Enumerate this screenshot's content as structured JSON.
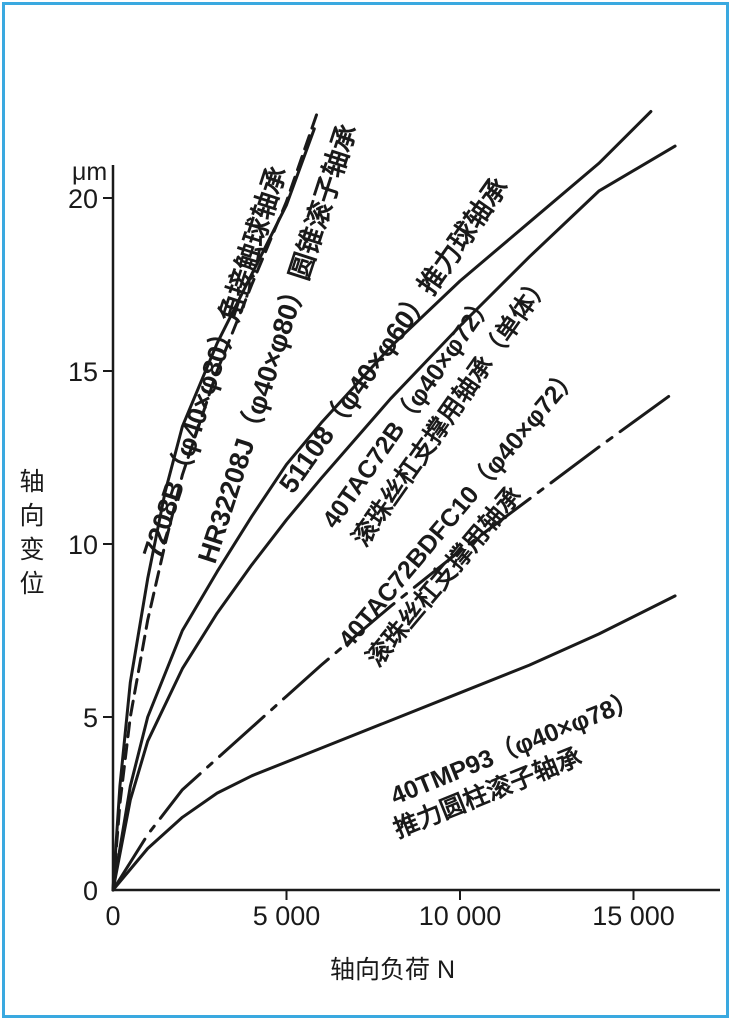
{
  "chart_data": {
    "type": "line",
    "xlabel": "轴向负荷 N",
    "ylabel": "轴向变位",
    "yunit": "μm",
    "xlim": [
      0,
      17500
    ],
    "ylim": [
      0,
      21
    ],
    "x_ticks": [
      {
        "value": 0,
        "label": "0"
      },
      {
        "value": 5000,
        "label": "5 000"
      },
      {
        "value": 10000,
        "label": "10 000"
      },
      {
        "value": 15000,
        "label": "15 000"
      }
    ],
    "y_ticks": [
      {
        "value": 0,
        "label": "0"
      },
      {
        "value": 5,
        "label": "5"
      },
      {
        "value": 10,
        "label": "10"
      },
      {
        "value": 15,
        "label": "15"
      },
      {
        "value": 20,
        "label": "20"
      }
    ],
    "grid": false,
    "series": [
      {
        "name": "7208B（φ40×φ80）角接触球轴承",
        "style": "solid",
        "points": [
          [
            0,
            0
          ],
          [
            200,
            3
          ],
          [
            500,
            6
          ],
          [
            1000,
            9
          ],
          [
            1500,
            11.5
          ],
          [
            2000,
            13.4
          ],
          [
            3000,
            15.8
          ],
          [
            4000,
            17.8
          ],
          [
            5000,
            19.8
          ],
          [
            5800,
            22
          ]
        ]
      },
      {
        "name": "HR32208J（φ40×φ80）圆锥滚子轴承",
        "style": "dashed",
        "points": [
          [
            0,
            0
          ],
          [
            200,
            2.5
          ],
          [
            500,
            5
          ],
          [
            1000,
            7.8
          ],
          [
            1500,
            10
          ],
          [
            2000,
            12
          ],
          [
            3000,
            15
          ],
          [
            4000,
            17.5
          ],
          [
            5000,
            19.9
          ],
          [
            5900,
            22.5
          ]
        ]
      },
      {
        "name": "51108（φ40×φ60）推力球轴承",
        "style": "solid",
        "points": [
          [
            0,
            0
          ],
          [
            500,
            3
          ],
          [
            1000,
            5
          ],
          [
            2000,
            7.5
          ],
          [
            3000,
            9.2
          ],
          [
            4000,
            10.8
          ],
          [
            5000,
            12.3
          ],
          [
            6000,
            13.5
          ],
          [
            8000,
            15.7
          ],
          [
            10000,
            17.6
          ],
          [
            12000,
            19.3
          ],
          [
            14000,
            21
          ],
          [
            15500,
            22.5
          ]
        ]
      },
      {
        "name": "40TAC72B（φ40×φ72）滚珠丝杠支撑用轴承（单体）",
        "style": "solid",
        "points": [
          [
            0,
            0
          ],
          [
            500,
            2.6
          ],
          [
            1000,
            4.3
          ],
          [
            2000,
            6.4
          ],
          [
            3000,
            8
          ],
          [
            4000,
            9.4
          ],
          [
            5000,
            10.7
          ],
          [
            6000,
            11.9
          ],
          [
            8000,
            14.2
          ],
          [
            10000,
            16.3
          ],
          [
            12000,
            18.3
          ],
          [
            14000,
            20.2
          ],
          [
            16200,
            21.5
          ]
        ]
      },
      {
        "name": "40TAC72BDFC10（φ40×φ72）滚珠丝杠支撑用轴承",
        "style": "dashdot",
        "points": [
          [
            0,
            0
          ],
          [
            1000,
            1.6
          ],
          [
            2000,
            2.9
          ],
          [
            3000,
            3.8
          ],
          [
            4000,
            4.7
          ],
          [
            5000,
            5.6
          ],
          [
            6000,
            6.5
          ],
          [
            8000,
            8.2
          ],
          [
            10000,
            9.8
          ],
          [
            12000,
            11.3
          ],
          [
            14000,
            12.8
          ],
          [
            16200,
            14.4
          ]
        ]
      },
      {
        "name": "40TMP93（φ40×φ78）推力圆柱滚子轴承",
        "style": "solid",
        "points": [
          [
            0,
            0
          ],
          [
            1000,
            1.2
          ],
          [
            2000,
            2.1
          ],
          [
            3000,
            2.8
          ],
          [
            4000,
            3.3
          ],
          [
            6000,
            4.1
          ],
          [
            8000,
            4.9
          ],
          [
            10000,
            5.7
          ],
          [
            12000,
            6.5
          ],
          [
            14000,
            7.4
          ],
          [
            16200,
            8.5
          ]
        ]
      }
    ],
    "annotations": [
      {
        "series": 0,
        "text": "7208B（φ40×φ80）角接触球轴承"
      },
      {
        "series": 1,
        "text": "HR32208J（φ40×φ80）圆锥滚子轴承"
      },
      {
        "series": 2,
        "text": "51108（φ40×φ60）推力球轴承"
      },
      {
        "series": 3,
        "line1": "40TAC72B（φ40×φ72）",
        "line2": "滚珠丝杠支撑用轴承（单体）"
      },
      {
        "series": 4,
        "line1": "40TAC72BDFC10（φ40×φ72）",
        "line2": "滚珠丝杠支撑用轴承"
      },
      {
        "series": 5,
        "line1": "40TMP93（φ40×φ78）",
        "line2": "推力圆柱滚子轴承"
      }
    ]
  }
}
